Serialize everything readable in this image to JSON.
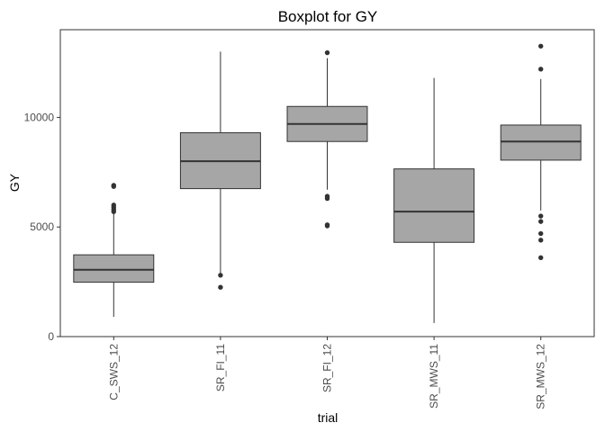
{
  "chart_data": {
    "type": "boxplot",
    "title": "Boxplot for GY",
    "xlabel": "trial",
    "ylabel": "GY",
    "ylim": [
      0,
      14000
    ],
    "yticks": [
      0,
      5000,
      10000
    ],
    "ytick_labels": [
      "0",
      "5000",
      "10000"
    ],
    "grid": false,
    "legend": "none",
    "categories": [
      "C_SWS_12",
      "SR_FI_11",
      "SR_FI_12",
      "SR_MWS_11",
      "SR_MWS_12"
    ],
    "boxes": [
      {
        "category": "C_SWS_12",
        "whisker_low": 900,
        "q1": 2480,
        "median": 3050,
        "q3": 3730,
        "whisker_high": 5600,
        "outliers": [
          5700,
          5800,
          5900,
          6000,
          6850,
          6900
        ]
      },
      {
        "category": "SR_FI_11",
        "whisker_low": 2900,
        "q1": 6750,
        "median": 8000,
        "q3": 9300,
        "whisker_high": 13000,
        "outliers": [
          2800,
          2250
        ]
      },
      {
        "category": "SR_FI_12",
        "whisker_low": 6700,
        "q1": 8900,
        "median": 9700,
        "q3": 10500,
        "whisker_high": 12700,
        "outliers": [
          12950,
          6300,
          6400,
          5100,
          5050
        ]
      },
      {
        "category": "SR_MWS_11",
        "whisker_low": 620,
        "q1": 4300,
        "median": 5700,
        "q3": 7650,
        "whisker_high": 11800,
        "outliers": []
      },
      {
        "category": "SR_MWS_12",
        "whisker_low": 5750,
        "q1": 8050,
        "median": 8900,
        "q3": 9650,
        "whisker_high": 11750,
        "outliers": [
          13250,
          12200,
          5500,
          5250,
          4700,
          4400,
          3600
        ]
      }
    ],
    "colors": {
      "box_fill": "#a6a6a6",
      "box_stroke": "#333333",
      "outlier": "#333333",
      "panel_border": "#333333"
    }
  }
}
